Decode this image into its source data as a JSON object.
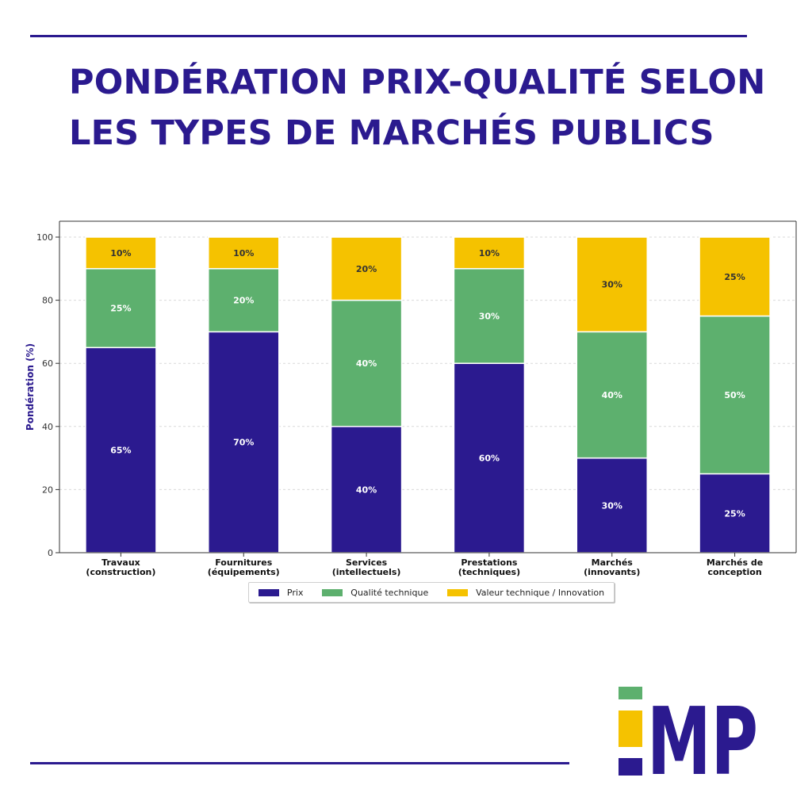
{
  "header": {
    "title_line1": "PONDÉRATION PRIX-QUALITÉ SELON",
    "title_line2": "LES TYPES DE MARCHÉS PUBLICS"
  },
  "colors": {
    "brand": "#2b1a8f",
    "prix": "#2b1a8f",
    "qualite": "#5db06e",
    "valeur": "#f5c200"
  },
  "logo": {
    "text": "MP"
  },
  "chart_data": {
    "type": "bar",
    "stacked": true,
    "title": "",
    "xlabel": "",
    "ylabel": "Pondération (%)",
    "ylim": [
      0,
      100
    ],
    "yticks": [
      0,
      20,
      40,
      60,
      80,
      100
    ],
    "grid": true,
    "legend_position": "bottom-center",
    "categories": [
      [
        "Travaux",
        "(construction)"
      ],
      [
        "Fournitures",
        "(équipements)"
      ],
      [
        "Services",
        "(intellectuels)"
      ],
      [
        "Prestations",
        "(techniques)"
      ],
      [
        "Marchés",
        "(innovants)"
      ],
      [
        "Marchés de",
        "conception"
      ]
    ],
    "series": [
      {
        "name": "Prix",
        "color": "#2b1a8f",
        "label_color": "#ffffff",
        "values": [
          65,
          70,
          40,
          60,
          30,
          25
        ]
      },
      {
        "name": "Qualité technique",
        "color": "#5db06e",
        "label_color": "#ffffff",
        "values": [
          25,
          20,
          40,
          30,
          40,
          50
        ]
      },
      {
        "name": "Valeur technique / Innovation",
        "color": "#f5c200",
        "label_color": "#333333",
        "values": [
          10,
          10,
          20,
          10,
          30,
          25
        ]
      }
    ]
  }
}
